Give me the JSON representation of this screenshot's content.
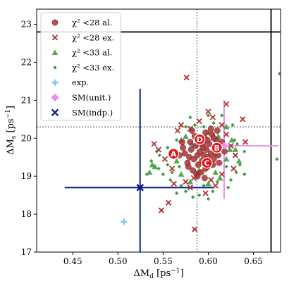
{
  "chart_data": {
    "type": "scatter",
    "xlabel": "ΔM_d [ps⁻¹]",
    "ylabel": "ΔM_s [ps⁻¹]",
    "xlim": [
      0.41,
      0.68
    ],
    "ylim": [
      17.0,
      23.4
    ],
    "xticks": [
      0.45,
      0.5,
      0.55,
      0.6,
      0.65
    ],
    "xtick_labels": [
      "0.45",
      "0.50",
      "0.55",
      "0.60",
      "0.65"
    ],
    "yticks": [
      17,
      18,
      19,
      20,
      21,
      22,
      23
    ],
    "ytick_labels": [
      "17",
      "18",
      "19",
      "20",
      "21",
      "22",
      "23"
    ],
    "grid": false,
    "legend_placement": "top-left",
    "reference_lines": {
      "solid_vertical_x": 0.6695,
      "solid_horizontal_y": 22.8,
      "dashed_vertical_x": 0.5875,
      "dashed_horizontal_y": 20.3
    },
    "region_labels": [
      {
        "text": "A",
        "x": 0.5615,
        "y": 19.59
      },
      {
        "text": "D",
        "x": 0.5905,
        "y": 19.97
      },
      {
        "text": "B",
        "x": 0.6095,
        "y": 19.75
      },
      {
        "text": "C",
        "x": 0.5985,
        "y": 19.35
      }
    ],
    "series": [
      {
        "name": "χ² <28 al.",
        "marker": "circle",
        "color": "#a83232",
        "cloud_center": [
          0.59,
          19.6
        ],
        "points": [
          [
            0.574,
            19.6
          ],
          [
            0.579,
            19.5
          ],
          [
            0.581,
            19.7
          ],
          [
            0.584,
            19.45
          ],
          [
            0.586,
            19.8
          ],
          [
            0.588,
            19.55
          ],
          [
            0.589,
            19.3
          ],
          [
            0.59,
            19.9
          ],
          [
            0.591,
            19.65
          ],
          [
            0.593,
            19.4
          ],
          [
            0.594,
            19.75
          ],
          [
            0.595,
            19.55
          ],
          [
            0.596,
            20.0
          ],
          [
            0.597,
            19.2
          ],
          [
            0.598,
            19.7
          ],
          [
            0.6,
            19.5
          ],
          [
            0.601,
            19.85
          ],
          [
            0.602,
            19.35
          ],
          [
            0.603,
            19.6
          ],
          [
            0.604,
            20.1
          ],
          [
            0.606,
            19.45
          ],
          [
            0.607,
            19.75
          ],
          [
            0.608,
            19.6
          ],
          [
            0.609,
            19.95
          ],
          [
            0.611,
            19.55
          ],
          [
            0.613,
            19.8
          ],
          [
            0.583,
            19.15
          ],
          [
            0.587,
            19.05
          ],
          [
            0.592,
            19.1
          ],
          [
            0.599,
            19.25
          ],
          [
            0.605,
            19.3
          ],
          [
            0.577,
            19.35
          ],
          [
            0.58,
            19.9
          ],
          [
            0.585,
            20.05
          ],
          [
            0.597,
            20.15
          ],
          [
            0.603,
            20.25
          ],
          [
            0.61,
            20.2
          ],
          [
            0.615,
            19.9
          ],
          [
            0.568,
            19.55
          ],
          [
            0.572,
            19.75
          ],
          [
            0.578,
            19.25
          ],
          [
            0.588,
            19.0
          ],
          [
            0.596,
            18.95
          ],
          [
            0.612,
            19.35
          ],
          [
            0.618,
            19.65
          ],
          [
            0.582,
            20.2
          ],
          [
            0.571,
            19.9
          ],
          [
            0.594,
            19.85
          ],
          [
            0.599,
            19.95
          ],
          [
            0.606,
            20.0
          ]
        ]
      },
      {
        "name": "χ² <28 ex.",
        "marker": "x",
        "color": "#b03a3a",
        "points": [
          [
            0.576,
            21.6
          ],
          [
            0.62,
            20.9
          ],
          [
            0.638,
            20.5
          ],
          [
            0.641,
            19.9
          ],
          [
            0.6,
            20.7
          ],
          [
            0.566,
            20.2
          ],
          [
            0.584,
            18.95
          ],
          [
            0.562,
            18.8
          ],
          [
            0.556,
            18.3
          ],
          [
            0.548,
            18.1
          ],
          [
            0.58,
            18.7
          ],
          [
            0.585,
            17.6
          ],
          [
            0.545,
            19.7
          ],
          [
            0.54,
            19.85
          ],
          [
            0.552,
            19.45
          ],
          [
            0.603,
            18.9
          ],
          [
            0.608,
            18.75
          ],
          [
            0.625,
            19.8
          ],
          [
            0.63,
            19.55
          ],
          [
            0.59,
            20.45
          ],
          [
            0.57,
            20.35
          ],
          [
            0.605,
            20.55
          ],
          [
            0.615,
            20.35
          ],
          [
            0.56,
            19.2
          ],
          [
            0.575,
            18.85
          ],
          [
            0.615,
            19.05
          ],
          [
            0.628,
            19.2
          ],
          [
            0.58,
            20.25
          ],
          [
            0.597,
            18.55
          ],
          [
            0.62,
            20.1
          ]
        ]
      },
      {
        "name": "χ² <33 al.",
        "marker": "triangle",
        "color": "#3f9e3f",
        "points": [
          [
            0.535,
            19.1
          ],
          [
            0.538,
            19.3
          ],
          [
            0.541,
            19.25
          ],
          [
            0.57,
            19.95
          ],
          [
            0.575,
            20.05
          ],
          [
            0.582,
            19.85
          ],
          [
            0.62,
            19.45
          ],
          [
            0.624,
            19.7
          ],
          [
            0.608,
            19.1
          ],
          [
            0.613,
            18.95
          ],
          [
            0.6,
            18.8
          ],
          [
            0.59,
            19.15
          ],
          [
            0.565,
            19.4
          ],
          [
            0.57,
            19.05
          ],
          [
            0.626,
            19.95
          ],
          [
            0.63,
            19.7
          ],
          [
            0.611,
            20.05
          ],
          [
            0.6,
            20.15
          ],
          [
            0.62,
            20.3
          ],
          [
            0.634,
            19.4
          ],
          [
            0.58,
            18.85
          ]
        ]
      },
      {
        "name": "χ² <33 ex.",
        "marker": "diamond",
        "color": "#3f9e3f",
        "points": [
          [
            0.679,
            21.7
          ],
          [
            0.676,
            19.45
          ],
          [
            0.629,
            19.95
          ],
          [
            0.627,
            20.35
          ],
          [
            0.532,
            19.05
          ],
          [
            0.537,
            19.4
          ],
          [
            0.543,
            19.65
          ],
          [
            0.546,
            19.55
          ],
          [
            0.555,
            19.3
          ],
          [
            0.558,
            18.9
          ],
          [
            0.565,
            18.55
          ],
          [
            0.575,
            18.6
          ],
          [
            0.583,
            18.45
          ],
          [
            0.59,
            18.5
          ],
          [
            0.595,
            18.75
          ],
          [
            0.605,
            18.6
          ],
          [
            0.622,
            18.7
          ],
          [
            0.631,
            19.1
          ],
          [
            0.635,
            19.3
          ],
          [
            0.64,
            19.65
          ],
          [
            0.615,
            20.6
          ],
          [
            0.606,
            20.4
          ],
          [
            0.595,
            20.3
          ],
          [
            0.585,
            20.35
          ],
          [
            0.575,
            20.3
          ],
          [
            0.565,
            19.95
          ],
          [
            0.555,
            19.75
          ],
          [
            0.56,
            19.1
          ],
          [
            0.57,
            18.75
          ],
          [
            0.61,
            18.85
          ],
          [
            0.62,
            19.25
          ],
          [
            0.632,
            19.85
          ],
          [
            0.6,
            20.6
          ],
          [
            0.58,
            20.55
          ],
          [
            0.55,
            19.05
          ],
          [
            0.545,
            19.2
          ],
          [
            0.64,
            19.05
          ],
          [
            0.625,
            18.9
          ],
          [
            0.6,
            18.4
          ],
          [
            0.568,
            19.25
          ]
        ]
      }
    ],
    "error_bar_markers": [
      {
        "name": "exp.",
        "marker": "plus",
        "color": "#7fc8f0",
        "x": 0.5065,
        "y": 17.8
      },
      {
        "name": "SM(unit.)",
        "marker": "diamond",
        "color": "#ea8ee8",
        "x": 0.6175,
        "y": 19.8,
        "x_range": [
          0.583,
          0.678
        ],
        "y_range": [
          18.4,
          21.0
        ]
      },
      {
        "name": "SM(indp.)",
        "marker": "x",
        "color": "#0a1d8a",
        "x": 0.5245,
        "y": 18.7,
        "x_range": [
          0.441,
          0.607
        ],
        "y_range": [
          17.0,
          21.3
        ]
      }
    ]
  }
}
